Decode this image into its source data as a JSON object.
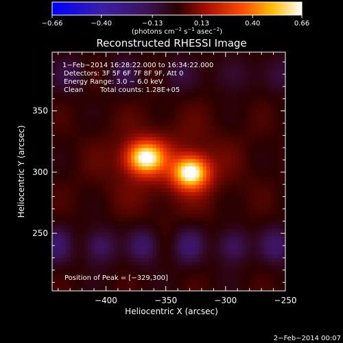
{
  "chart_data": {
    "type": "heatmap",
    "title": "Reconstructed RHESSI Image",
    "xlabel": "Heliocentric X (arcsec)",
    "ylabel": "Heliocentric Y (arcsec)",
    "xlim": [
      -445,
      -250
    ],
    "ylim": [
      203,
      398
    ],
    "x_ticks": [
      -400,
      -350,
      -300,
      -250
    ],
    "x_tick_labels": [
      "−400",
      "−350",
      "−300",
      "−250"
    ],
    "y_ticks": [
      250,
      300,
      350
    ],
    "y_tick_labels": [
      "250",
      "300",
      "350"
    ],
    "colorbar": {
      "range": [
        -0.66,
        0.66
      ],
      "ticks": [
        -0.66,
        -0.4,
        -0.13,
        0.13,
        0.4,
        0.66
      ],
      "tick_labels": [
        "−0.66",
        "−0.40",
        "−0.13",
        "0.13",
        "0.40",
        "0.66"
      ],
      "unit_prefix": "(photons cm",
      "unit_exp1": "−2",
      "unit_mid": " s",
      "unit_exp2": "−1",
      "unit_mid2": " asec",
      "unit_exp3": "−2",
      "unit_suffix": ")"
    },
    "sources": [
      {
        "x": -367,
        "y": 312,
        "peak": 0.62,
        "sx": 11,
        "sy": 9
      },
      {
        "x": -329,
        "y": 300,
        "peak": 0.66,
        "sx": 10,
        "sy": 9
      }
    ],
    "info_lines": [
      " 1−Feb−2014 16:28:22.000 to 16:34:22.000",
      "Detectors: 3F 5F 6F 7F 8F 9F, Att 0",
      "Energy Range: 3.0 − 6.0 keV"
    ],
    "clean_label": "Clean",
    "total_counts": "Total counts: 1.28E+05",
    "peak_position": "Position of Peak = [−329,300]",
    "timestamp": "2−Feb−2014 00:07",
    "colors": {
      "background": "#000000",
      "text": "#ffffff"
    }
  }
}
